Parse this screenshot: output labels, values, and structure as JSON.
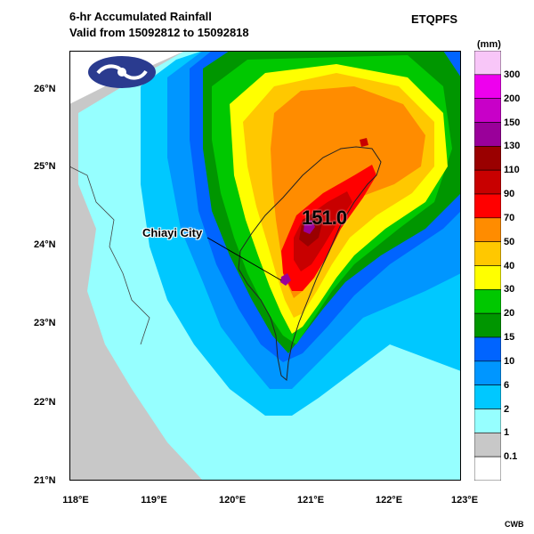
{
  "title_line1": "6-hr Accumulated Rainfall",
  "title_line2": "Valid from 15092812 to 15092818",
  "product": "ETQPFS",
  "unit": "(mm)",
  "credit": "CWB",
  "annotation_city": "Chiayi City",
  "max_value": "151.0",
  "lat_labels": [
    "26°N",
    "25°N",
    "24°N",
    "23°N",
    "22°N",
    "21°N"
  ],
  "lon_labels": [
    "118°E",
    "119°E",
    "120°E",
    "121°E",
    "122°E",
    "123°E"
  ],
  "legend_levels": [
    "300",
    "200",
    "150",
    "130",
    "110",
    "90",
    "70",
    "50",
    "40",
    "30",
    "20",
    "15",
    "10",
    "6",
    "2",
    "1",
    "0.1"
  ],
  "legend_colors": [
    "#f8c6f8",
    "#ee00ee",
    "#c800c8",
    "#9a009a",
    "#9a0000",
    "#c80000",
    "#ff0000",
    "#ff8c00",
    "#ffc800",
    "#ffff00",
    "#00c800",
    "#009600",
    "#0064ff",
    "#0096ff",
    "#00c8ff",
    "#96ffff",
    "#c8c8c8",
    "#ffffff"
  ]
}
